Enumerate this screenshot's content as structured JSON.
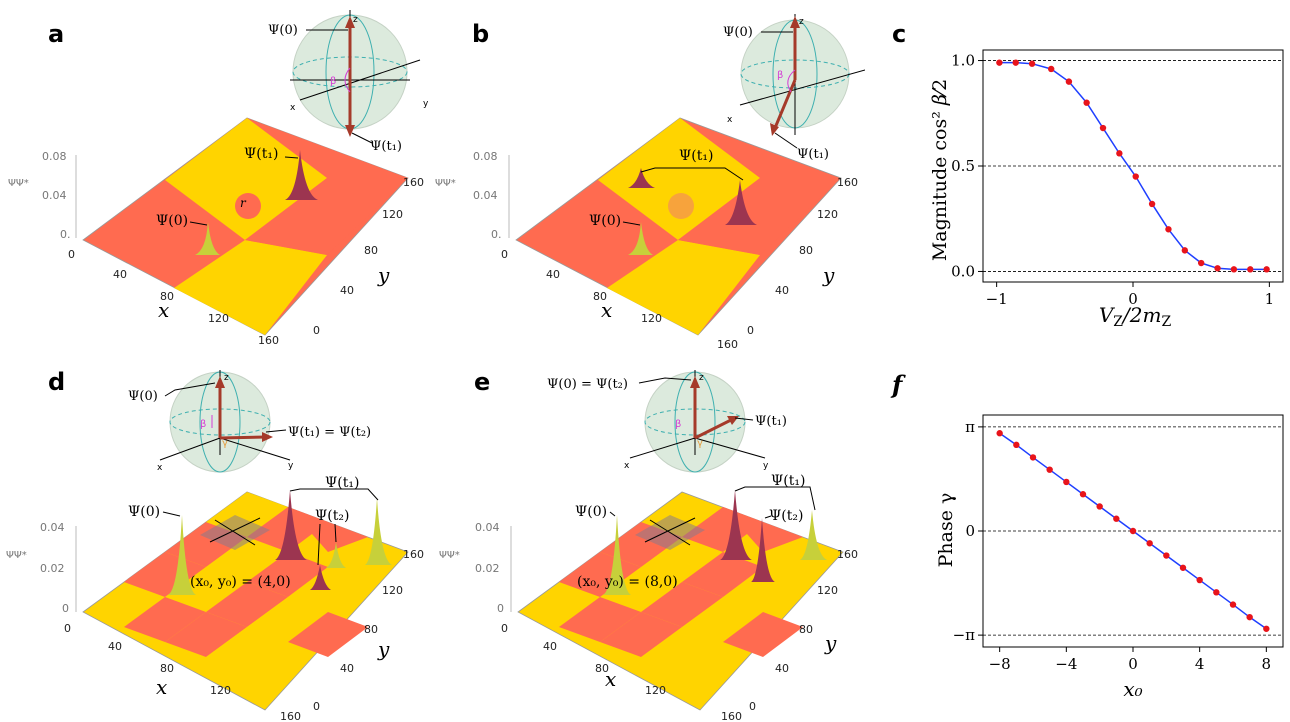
{
  "panels": {
    "a": {
      "label": "a",
      "z_axis_label": "ΨΨ*",
      "z_ticks": [
        "0.08",
        "0.04",
        "0."
      ],
      "x_ticks": [
        "0",
        "40",
        "80",
        "120",
        "160"
      ],
      "y_ticks": [
        "0",
        "40",
        "80",
        "120",
        "160"
      ],
      "x_label": "x",
      "y_label": "y",
      "ann_psi0": "Ψ(0)",
      "ann_psit1": "Ψ(t₁)",
      "ann_r": "r",
      "sphere": {
        "psi0": "Ψ(0)",
        "psit1": "Ψ(t₁)",
        "axis_x": "x",
        "axis_y": "y",
        "axis_z": "z",
        "beta": "β"
      }
    },
    "b": {
      "label": "b",
      "z_axis_label": "ΨΨ*",
      "z_ticks": [
        "0.08",
        "0.04",
        "0."
      ],
      "x_ticks": [
        "0",
        "40",
        "80",
        "120",
        "160"
      ],
      "y_ticks": [
        "0",
        "40",
        "80",
        "120",
        "160"
      ],
      "x_label": "x",
      "y_label": "y",
      "ann_psi0": "Ψ(0)",
      "ann_psit1": "Ψ(t₁)",
      "sphere": {
        "psi0": "Ψ(0)",
        "psit1": "Ψ(t₁)",
        "axis_x": "x",
        "axis_y": "y",
        "axis_z": "z",
        "beta": "β"
      }
    },
    "d": {
      "label": "d",
      "z_axis_label": "ΨΨ*",
      "z_ticks": [
        "0.04",
        "0.02",
        "0"
      ],
      "x_ticks": [
        "0",
        "40",
        "80",
        "120",
        "160"
      ],
      "y_ticks": [
        "0",
        "40",
        "80",
        "120",
        "160"
      ],
      "x_label": "x",
      "y_label": "y",
      "ann_psi0": "Ψ(0)",
      "ann_psit1": "Ψ(t₁)",
      "ann_psit2": "Ψ(t₂)",
      "ann_x0y0": "(x₀, y₀) = (4,0)",
      "sphere": {
        "psi0": "Ψ(0)",
        "psit1": "Ψ(t₁) = Ψ(t₂)",
        "axis_x": "x",
        "axis_y": "y",
        "axis_z": "z",
        "beta": "β",
        "gamma": "γ"
      }
    },
    "e": {
      "label": "e",
      "z_axis_label": "ΨΨ*",
      "z_ticks": [
        "0.04",
        "0.02",
        "0"
      ],
      "x_ticks": [
        "0",
        "40",
        "80",
        "120",
        "160"
      ],
      "y_ticks": [
        "0",
        "40",
        "80",
        "120",
        "160"
      ],
      "x_label": "x",
      "y_label": "y",
      "ann_psi0": "Ψ(0)",
      "ann_psit1": "Ψ(t₁)",
      "ann_psit2": "Ψ(t₂)",
      "ann_x0y0": "(x₀, y₀) = (8,0)",
      "sphere": {
        "psi0": "Ψ(0) = Ψ(t₂)",
        "psit1": "Ψ(t₁)",
        "axis_x": "x",
        "axis_y": "y",
        "axis_z": "z",
        "beta": "β",
        "gamma": "γ"
      }
    },
    "c": {
      "label": "c"
    },
    "f": {
      "label": "f"
    }
  },
  "chart_data": [
    {
      "panel": "c",
      "type": "line",
      "xlabel": "V_Z/2m_Z",
      "ylabel": "Magnitude cos²(β/2)",
      "xlim": [
        -1.1,
        1.1
      ],
      "ylim": [
        -0.05,
        1.05
      ],
      "x_ticks": [
        "−1",
        "0",
        "1"
      ],
      "y_ticks": [
        "0.0",
        "0.5",
        "1.0"
      ],
      "grid": "horizontal dashed at 0, 0.5, 1",
      "x": [
        -0.98,
        -0.86,
        -0.74,
        -0.6,
        -0.47,
        -0.34,
        -0.22,
        -0.1,
        0.02,
        0.14,
        0.26,
        0.38,
        0.5,
        0.62,
        0.74,
        0.86,
        0.98
      ],
      "values": [
        0.99,
        0.99,
        0.985,
        0.96,
        0.9,
        0.8,
        0.68,
        0.56,
        0.45,
        0.32,
        0.2,
        0.1,
        0.04,
        0.015,
        0.01,
        0.01,
        0.01
      ],
      "line_color": "#1f3fff",
      "marker_color": "#e8141b"
    },
    {
      "panel": "f",
      "type": "line",
      "xlabel": "x₀",
      "ylabel": "Phase γ",
      "xlim": [
        -9,
        9
      ],
      "ylim": [
        -3.5,
        3.5
      ],
      "x_ticks": [
        "−8",
        "−4",
        "0",
        "4",
        "8"
      ],
      "y_ticks": [
        "−π",
        "0",
        "π"
      ],
      "grid": "horizontal dashed at −π, 0, π",
      "x": [
        -8,
        -7,
        -6,
        -5,
        -4,
        -3,
        -2,
        -1,
        0,
        1,
        2,
        3,
        4,
        5,
        6,
        7,
        8
      ],
      "values": [
        2.95,
        2.6,
        2.22,
        1.85,
        1.48,
        1.11,
        0.74,
        0.37,
        0.0,
        -0.37,
        -0.74,
        -1.11,
        -1.48,
        -1.85,
        -2.22,
        -2.6,
        -2.95
      ],
      "line_color": "#1f3fff",
      "marker_color": "#e8141b"
    }
  ],
  "colors": {
    "yellow": "#ffd400",
    "red": "#ff6b50",
    "sphere": "#dceadd",
    "vector": "#a53a2a",
    "cyan": "#3fb0b0",
    "magenta": "#d43fd4",
    "orange": "#e59a3a"
  }
}
